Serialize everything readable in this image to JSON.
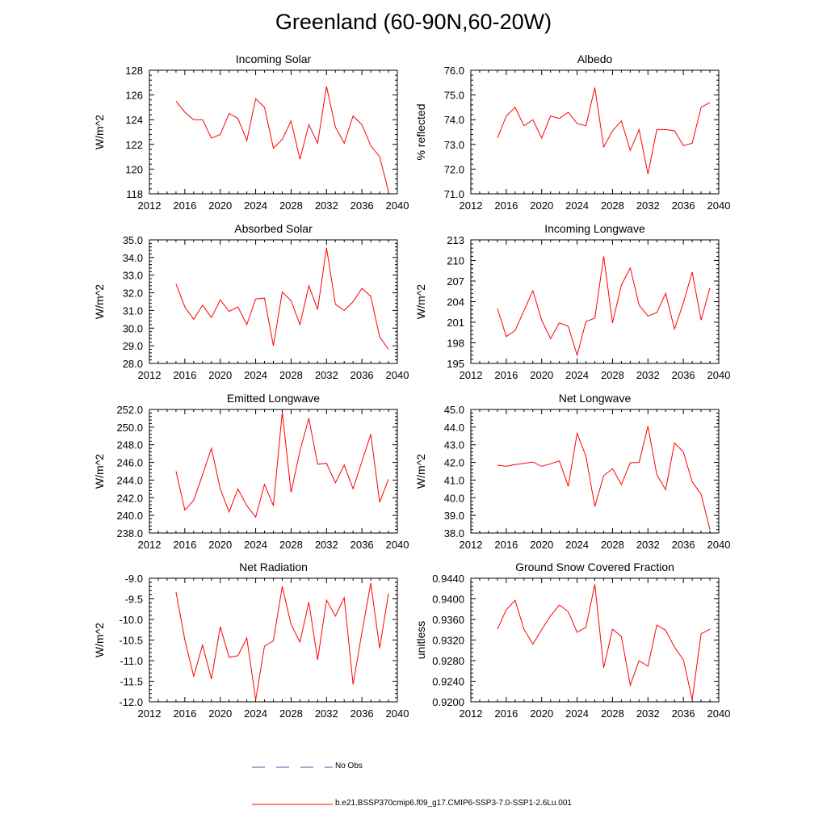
{
  "title": "Greenland (60-90N,60-20W)",
  "colors": {
    "series": "#ff0000",
    "obs": "#4a5aa8",
    "axis": "#000000"
  },
  "legend": {
    "obs_label": "No Obs",
    "model_label": "b.e21.BSSP370cmip6.f09_g17.CMIP6-SSP3-7.0-SSP1-2.6Lu.001"
  },
  "chart_data": [
    {
      "type": "line",
      "title": "Incoming Solar",
      "ylabel": "W/m^2",
      "xlim": [
        2012,
        2040
      ],
      "ylim": [
        118,
        128
      ],
      "xticks": [
        "2012",
        "2016",
        "2020",
        "2024",
        "2028",
        "2032",
        "2036",
        "2040"
      ],
      "yticks": [
        "118",
        "120",
        "122",
        "124",
        "126",
        "128"
      ],
      "x": [
        2015,
        2016,
        2017,
        2018,
        2019,
        2020,
        2021,
        2022,
        2023,
        2024,
        2025,
        2026,
        2027,
        2028,
        2029,
        2030,
        2031,
        2032,
        2033,
        2034,
        2035,
        2036,
        2037,
        2038,
        2039
      ],
      "values": [
        125.5,
        124.6,
        124.0,
        124.0,
        122.5,
        122.8,
        124.5,
        124.1,
        122.3,
        125.7,
        125.0,
        121.7,
        122.4,
        123.9,
        120.8,
        123.6,
        122.1,
        126.7,
        123.4,
        122.1,
        124.3,
        123.6,
        121.9,
        121.0,
        118.2
      ]
    },
    {
      "type": "line",
      "title": "Albedo",
      "ylabel": "% reflected",
      "xlim": [
        2012,
        2040
      ],
      "ylim": [
        71,
        76
      ],
      "xticks": [
        "2012",
        "2016",
        "2020",
        "2024",
        "2028",
        "2032",
        "2036",
        "2040"
      ],
      "yticks": [
        "71.0",
        "72.0",
        "73.0",
        "74.0",
        "75.0",
        "76.0"
      ],
      "x": [
        2015,
        2016,
        2017,
        2018,
        2019,
        2020,
        2021,
        2022,
        2023,
        2024,
        2025,
        2026,
        2027,
        2028,
        2029,
        2030,
        2031,
        2032,
        2033,
        2034,
        2035,
        2036,
        2037,
        2038,
        2039
      ],
      "values": [
        73.25,
        74.15,
        74.5,
        73.75,
        74.0,
        73.25,
        74.15,
        74.05,
        74.3,
        73.85,
        73.75,
        75.3,
        72.9,
        73.55,
        73.95,
        72.75,
        73.6,
        71.8,
        73.6,
        73.6,
        73.55,
        72.95,
        73.05,
        74.5,
        74.7
      ]
    },
    {
      "type": "line",
      "title": "Absorbed Solar",
      "ylabel": "W/m^2",
      "xlim": [
        2012,
        2040
      ],
      "ylim": [
        28,
        35
      ],
      "xticks": [
        "2012",
        "2016",
        "2020",
        "2024",
        "2028",
        "2032",
        "2036",
        "2040"
      ],
      "yticks": [
        "28.0",
        "29.0",
        "30.0",
        "31.0",
        "32.0",
        "33.0",
        "34.0",
        "35.0"
      ],
      "x": [
        2015,
        2016,
        2017,
        2018,
        2019,
        2020,
        2021,
        2022,
        2023,
        2024,
        2025,
        2026,
        2027,
        2028,
        2029,
        2030,
        2031,
        2032,
        2033,
        2034,
        2035,
        2036,
        2037,
        2038,
        2039
      ],
      "values": [
        32.5,
        31.2,
        30.5,
        31.3,
        30.6,
        31.6,
        30.95,
        31.2,
        30.2,
        31.65,
        31.7,
        29.0,
        32.05,
        31.55,
        30.2,
        32.4,
        31.05,
        34.55,
        31.35,
        31.0,
        31.5,
        32.25,
        31.8,
        29.5,
        28.8
      ]
    },
    {
      "type": "line",
      "title": "Incoming Longwave",
      "ylabel": "W/m^2",
      "xlim": [
        2012,
        2040
      ],
      "ylim": [
        195,
        213
      ],
      "xticks": [
        "2012",
        "2016",
        "2020",
        "2024",
        "2028",
        "2032",
        "2036",
        "2040"
      ],
      "yticks": [
        "195",
        "198",
        "201",
        "204",
        "207",
        "210",
        "213"
      ],
      "x": [
        2015,
        2016,
        2017,
        2018,
        2019,
        2020,
        2021,
        2022,
        2023,
        2024,
        2025,
        2026,
        2027,
        2028,
        2029,
        2030,
        2031,
        2032,
        2033,
        2034,
        2035,
        2036,
        2037,
        2038,
        2039
      ],
      "values": [
        203.0,
        198.9,
        199.8,
        202.7,
        205.6,
        201.3,
        198.6,
        200.9,
        200.4,
        196.2,
        201.1,
        201.6,
        210.6,
        200.9,
        206.4,
        208.9,
        203.5,
        201.9,
        202.4,
        205.2,
        200.0,
        203.8,
        208.3,
        201.3,
        206.0
      ]
    },
    {
      "type": "line",
      "title": "Emitted Longwave",
      "ylabel": "W/m^2",
      "xlim": [
        2012,
        2040
      ],
      "ylim": [
        238,
        252
      ],
      "xticks": [
        "2012",
        "2016",
        "2020",
        "2024",
        "2028",
        "2032",
        "2036",
        "2040"
      ],
      "yticks": [
        "238.0",
        "240.0",
        "242.0",
        "244.0",
        "246.0",
        "248.0",
        "250.0",
        "252.0"
      ],
      "x": [
        2015,
        2016,
        2017,
        2018,
        2019,
        2020,
        2021,
        2022,
        2023,
        2024,
        2025,
        2026,
        2027,
        2028,
        2029,
        2030,
        2031,
        2032,
        2033,
        2034,
        2035,
        2036,
        2037,
        2038,
        2039
      ],
      "values": [
        245.0,
        240.6,
        241.7,
        244.6,
        247.6,
        243.0,
        240.4,
        243.0,
        241.1,
        239.8,
        243.5,
        241.1,
        251.7,
        242.6,
        247.3,
        251.0,
        245.8,
        245.9,
        243.7,
        245.7,
        243.0,
        246.1,
        249.2,
        241.5,
        244.1
      ]
    },
    {
      "type": "line",
      "title": "Net Longwave",
      "ylabel": "W/m^2",
      "xlim": [
        2012,
        2040
      ],
      "ylim": [
        38,
        45
      ],
      "xticks": [
        "2012",
        "2016",
        "2020",
        "2024",
        "2028",
        "2032",
        "2036",
        "2040"
      ],
      "yticks": [
        "38.0",
        "39.0",
        "40.0",
        "41.0",
        "42.0",
        "43.0",
        "44.0",
        "45.0"
      ],
      "x": [
        2015,
        2016,
        2017,
        2018,
        2019,
        2020,
        2021,
        2022,
        2023,
        2024,
        2025,
        2026,
        2027,
        2028,
        2029,
        2030,
        2031,
        2032,
        2033,
        2034,
        2035,
        2036,
        2037,
        2038,
        2039
      ],
      "values": [
        41.85,
        41.78,
        41.88,
        41.95,
        42.02,
        41.78,
        41.92,
        42.08,
        40.65,
        43.65,
        42.35,
        39.5,
        41.25,
        41.65,
        40.75,
        41.98,
        42.0,
        44.05,
        41.3,
        40.45,
        43.1,
        42.6,
        40.9,
        40.2,
        38.2
      ]
    },
    {
      "type": "line",
      "title": "Net Radiation",
      "ylabel": "W/m^2",
      "xlim": [
        2012,
        2040
      ],
      "ylim": [
        -12,
        -9
      ],
      "xticks": [
        "2012",
        "2016",
        "2020",
        "2024",
        "2028",
        "2032",
        "2036",
        "2040"
      ],
      "yticks": [
        "-12.0",
        "-11.5",
        "-11.0",
        "-10.5",
        "-10.0",
        "-9.5",
        "-9.0"
      ],
      "x": [
        2015,
        2016,
        2017,
        2018,
        2019,
        2020,
        2021,
        2022,
        2023,
        2024,
        2025,
        2026,
        2027,
        2028,
        2029,
        2030,
        2031,
        2032,
        2033,
        2034,
        2035,
        2036,
        2037,
        2038,
        2039
      ],
      "values": [
        -9.33,
        -10.5,
        -11.38,
        -10.62,
        -11.45,
        -10.18,
        -10.92,
        -10.88,
        -10.45,
        -11.95,
        -10.65,
        -10.52,
        -9.2,
        -10.12,
        -10.55,
        -9.58,
        -10.98,
        -9.53,
        -9.92,
        -9.47,
        -11.58,
        -10.32,
        -9.12,
        -10.7,
        -9.37
      ]
    },
    {
      "type": "line",
      "title": "Ground Snow Covered Fraction",
      "ylabel": "unitless",
      "xlim": [
        2012,
        2040
      ],
      "ylim": [
        0.92,
        0.944
      ],
      "xticks": [
        "2012",
        "2016",
        "2020",
        "2024",
        "2028",
        "2032",
        "2036",
        "2040"
      ],
      "yticks": [
        "0.9200",
        "0.9240",
        "0.9280",
        "0.9320",
        "0.9360",
        "0.9400",
        "0.9440"
      ],
      "x": [
        2015,
        2016,
        2017,
        2018,
        2019,
        2020,
        2021,
        2022,
        2023,
        2024,
        2025,
        2026,
        2027,
        2028,
        2029,
        2030,
        2031,
        2032,
        2033,
        2034,
        2035,
        2036,
        2037,
        2038,
        2039
      ],
      "values": [
        0.9341,
        0.9379,
        0.9397,
        0.9341,
        0.9312,
        0.934,
        0.9367,
        0.9388,
        0.9375,
        0.9335,
        0.9345,
        0.9428,
        0.9266,
        0.9341,
        0.9327,
        0.9232,
        0.928,
        0.9269,
        0.9349,
        0.9339,
        0.9306,
        0.9282,
        0.9204,
        0.9332,
        0.9341
      ]
    }
  ]
}
